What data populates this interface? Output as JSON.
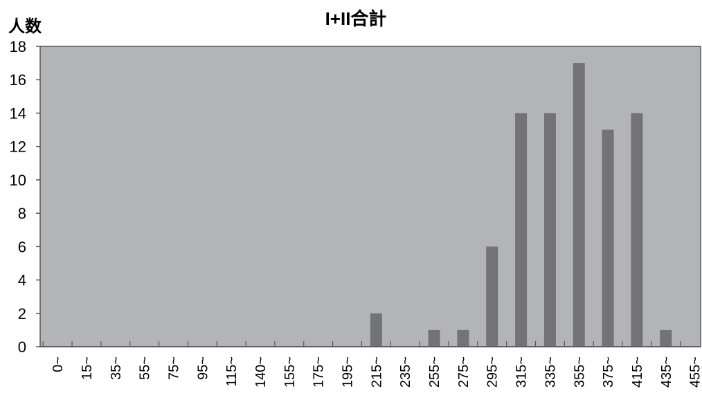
{
  "chart_data": {
    "type": "bar",
    "title": "I+II合計",
    "ylabel": "人数",
    "xlabel": "",
    "ylim": [
      0,
      18
    ],
    "yticks": [
      0,
      2,
      4,
      6,
      8,
      10,
      12,
      14,
      16,
      18
    ],
    "grid": false,
    "categories": [
      "0~",
      "15~",
      "35~",
      "55~",
      "75~",
      "95~",
      "115~",
      "140~",
      "155~",
      "175~",
      "195~",
      "215~",
      "235~",
      "255~",
      "275~",
      "295~",
      "315~",
      "335~",
      "355~",
      "375~",
      "415~",
      "435~",
      "455~"
    ],
    "values": [
      0,
      0,
      0,
      0,
      0,
      0,
      0,
      0,
      0,
      0,
      0,
      2,
      0,
      1,
      1,
      6,
      14,
      14,
      17,
      13,
      14,
      1,
      0
    ],
    "colors": {
      "plot_bg": "#b3b4b8",
      "bar": "#737377",
      "axis": "#555555"
    }
  }
}
